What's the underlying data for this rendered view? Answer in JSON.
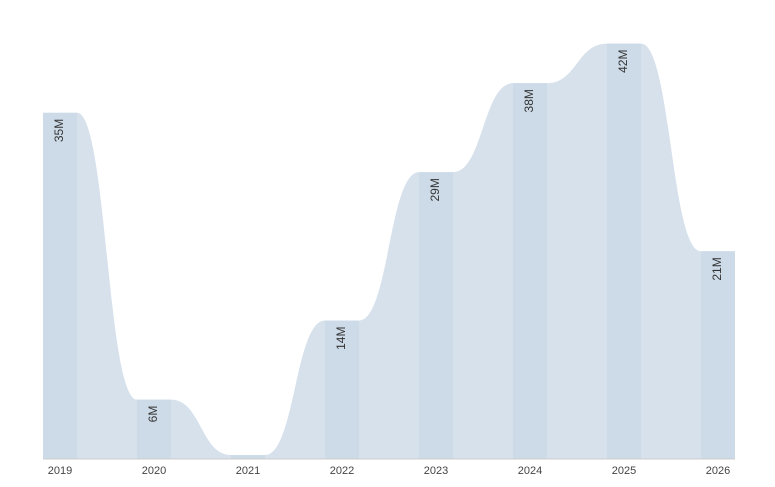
{
  "chart_data": {
    "type": "bar",
    "categories": [
      "2019",
      "2020",
      "2021",
      "2022",
      "2023",
      "2024",
      "2025",
      "2026"
    ],
    "values": [
      35,
      6,
      0.4,
      14,
      29,
      38,
      42,
      21
    ],
    "value_labels": [
      "35M",
      "6M",
      null,
      "14M",
      "29M",
      "38M",
      "42M",
      "21M"
    ],
    "color": "#cddbe8",
    "area_color": "#d7e1ec",
    "ylim": [
      0,
      46
    ]
  }
}
